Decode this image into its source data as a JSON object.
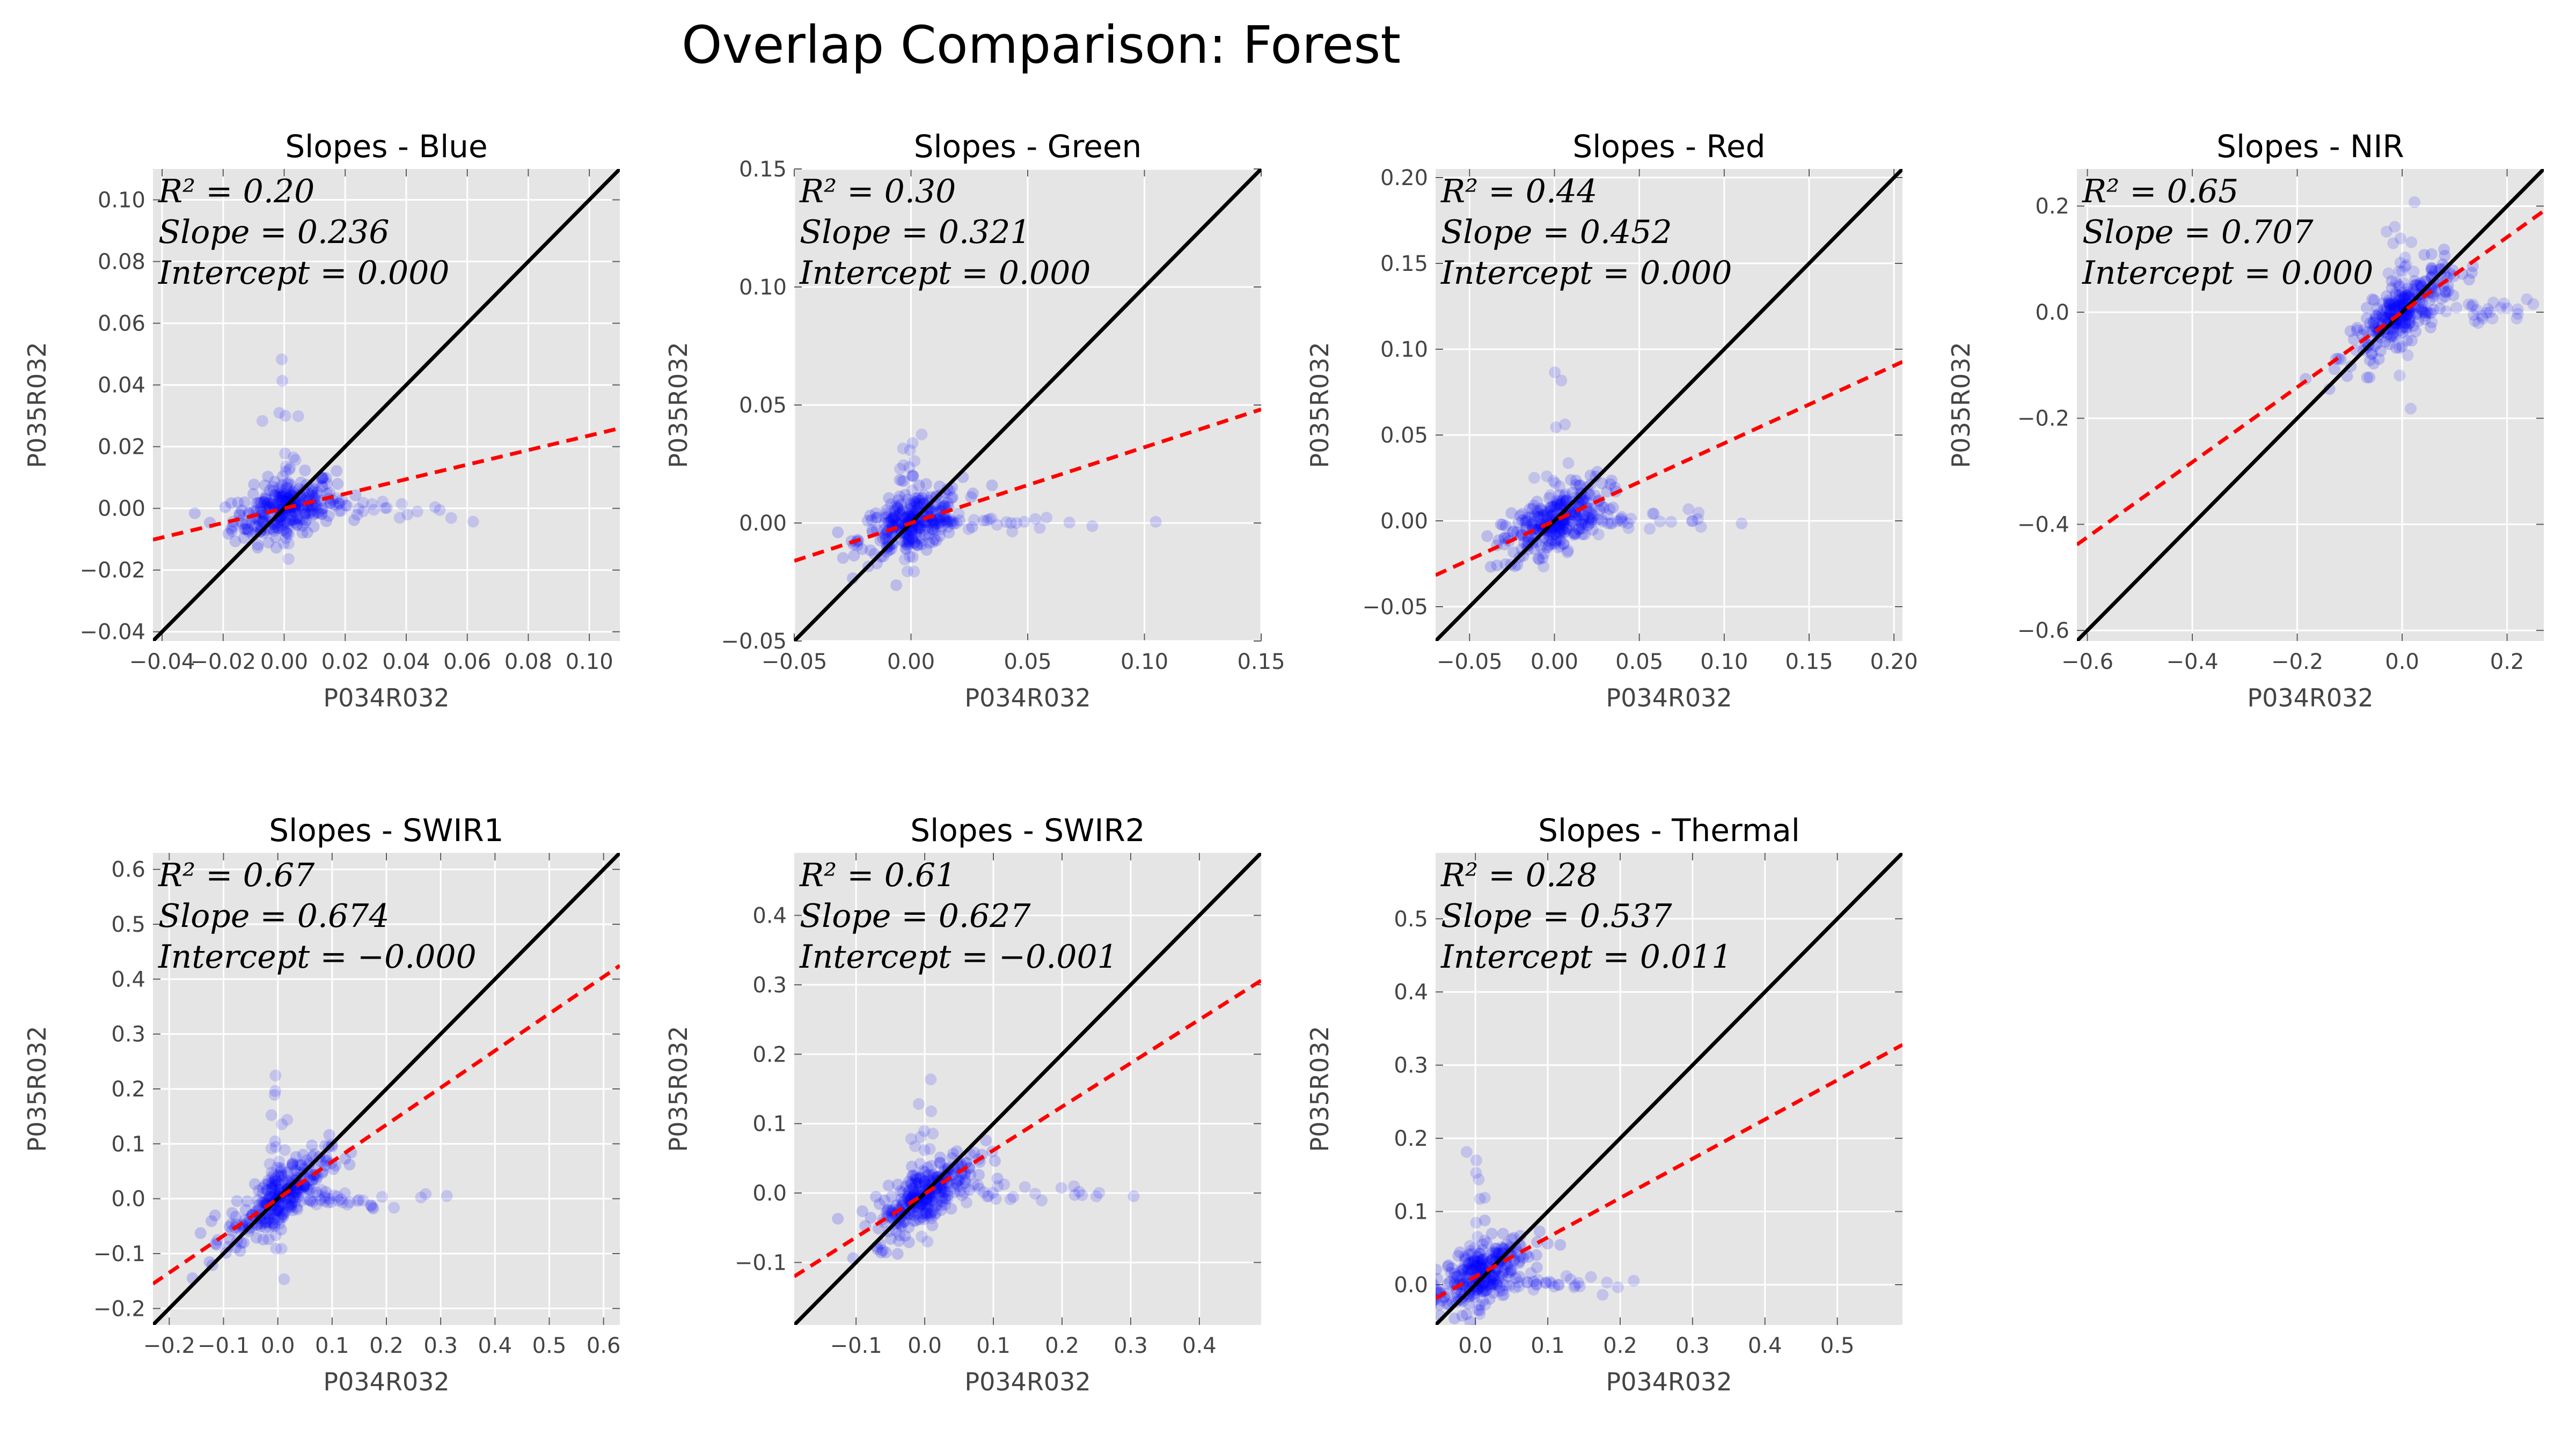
{
  "figure": {
    "title": "Overlap Comparison: Forest"
  },
  "style": {
    "panel_bg": "#e5e5e5",
    "grid": "#ffffff",
    "point": "#0000ff",
    "identity_line": "#000000",
    "fit_line": "#ff0000"
  },
  "chart_data": [
    {
      "type": "scatter",
      "title": "Slopes - Blue",
      "xlabel": "P034R032",
      "ylabel": "P035R032",
      "xlim": [
        -0.043,
        0.11
      ],
      "ylim": [
        -0.043,
        0.11
      ],
      "xticks": [
        "−0.04",
        "−0.02",
        "0.00",
        "0.02",
        "0.04",
        "0.06",
        "0.08",
        "0.10"
      ],
      "yticks": [
        "−0.04",
        "−0.02",
        "0.00",
        "0.02",
        "0.04",
        "0.06",
        "0.08",
        "0.10"
      ],
      "annotations": [
        "R² = 0.20",
        "Slope = 0.236",
        "Intercept = 0.000"
      ],
      "r2": 0.2,
      "slope": 0.236,
      "intercept": 0.0,
      "identity_line": true,
      "grid": true
    },
    {
      "type": "scatter",
      "title": "Slopes - Green",
      "xlabel": "P034R032",
      "ylabel": "P035R032",
      "xlim": [
        -0.05,
        0.15
      ],
      "ylim": [
        -0.05,
        0.15
      ],
      "xticks": [
        "−0.05",
        "0.00",
        "0.05",
        "0.10",
        "0.15"
      ],
      "yticks": [
        "−0.05",
        "0.00",
        "0.05",
        "0.10",
        "0.15"
      ],
      "annotations": [
        "R² = 0.30",
        "Slope = 0.321",
        "Intercept = 0.000"
      ],
      "r2": 0.3,
      "slope": 0.321,
      "intercept": 0.0,
      "identity_line": true,
      "grid": true
    },
    {
      "type": "scatter",
      "title": "Slopes - Red",
      "xlabel": "P034R032",
      "ylabel": "P035R032",
      "xlim": [
        -0.07,
        0.205
      ],
      "ylim": [
        -0.07,
        0.205
      ],
      "xticks": [
        "−0.05",
        "0.00",
        "0.05",
        "0.10",
        "0.15",
        "0.20"
      ],
      "yticks": [
        "−0.05",
        "0.00",
        "0.05",
        "0.10",
        "0.15",
        "0.20"
      ],
      "annotations": [
        "R² = 0.44",
        "Slope = 0.452",
        "Intercept = 0.000"
      ],
      "r2": 0.44,
      "slope": 0.452,
      "intercept": 0.0,
      "identity_line": true,
      "grid": true
    },
    {
      "type": "scatter",
      "title": "Slopes - NIR",
      "xlabel": "P034R032",
      "ylabel": "P035R032",
      "xlim": [
        -0.62,
        0.27
      ],
      "ylim": [
        -0.62,
        0.27
      ],
      "xticks": [
        "−0.6",
        "−0.4",
        "−0.2",
        "0.0",
        "0.2"
      ],
      "yticks": [
        "−0.6",
        "−0.4",
        "−0.2",
        "0.0",
        "0.2"
      ],
      "annotations": [
        "R² = 0.65",
        "Slope = 0.707",
        "Intercept = 0.000"
      ],
      "r2": 0.65,
      "slope": 0.707,
      "intercept": 0.0,
      "identity_line": true,
      "grid": true
    },
    {
      "type": "scatter",
      "title": "Slopes - SWIR1",
      "xlabel": "P034R032",
      "ylabel": "P035R032",
      "xlim": [
        -0.23,
        0.63
      ],
      "ylim": [
        -0.23,
        0.63
      ],
      "xticks": [
        "−0.2",
        "−0.1",
        "0.0",
        "0.1",
        "0.2",
        "0.3",
        "0.4",
        "0.5",
        "0.6"
      ],
      "yticks": [
        "−0.2",
        "−0.1",
        "0.0",
        "0.1",
        "0.2",
        "0.3",
        "0.4",
        "0.5",
        "0.6"
      ],
      "annotations": [
        "R² = 0.67",
        "Slope = 0.674",
        "Intercept = −0.000"
      ],
      "r2": 0.67,
      "slope": 0.674,
      "intercept": 0.0,
      "identity_line": true,
      "grid": true
    },
    {
      "type": "scatter",
      "title": "Slopes - SWIR2",
      "xlabel": "P034R032",
      "ylabel": "P035R032",
      "xlim": [
        -0.19,
        0.49
      ],
      "ylim": [
        -0.19,
        0.49
      ],
      "xticks": [
        "−0.1",
        "0.0",
        "0.1",
        "0.2",
        "0.3",
        "0.4"
      ],
      "yticks": [
        "−0.1",
        "0.0",
        "0.1",
        "0.2",
        "0.3",
        "0.4"
      ],
      "annotations": [
        "R² = 0.61",
        "Slope = 0.627",
        "Intercept = −0.001"
      ],
      "r2": 0.61,
      "slope": 0.627,
      "intercept": -0.001,
      "identity_line": true,
      "grid": true
    },
    {
      "type": "scatter",
      "title": "Slopes - Thermal",
      "xlabel": "P034R032",
      "ylabel": "P035R032",
      "xlim": [
        -0.055,
        0.59
      ],
      "ylim": [
        -0.055,
        0.59
      ],
      "xticks": [
        "0.0",
        "0.1",
        "0.2",
        "0.3",
        "0.4",
        "0.5"
      ],
      "yticks": [
        "0.0",
        "0.1",
        "0.2",
        "0.3",
        "0.4",
        "0.5"
      ],
      "annotations": [
        "R² = 0.28",
        "Slope = 0.537",
        "Intercept = 0.011"
      ],
      "r2": 0.28,
      "slope": 0.537,
      "intercept": 0.011,
      "identity_line": true,
      "grid": true
    }
  ]
}
